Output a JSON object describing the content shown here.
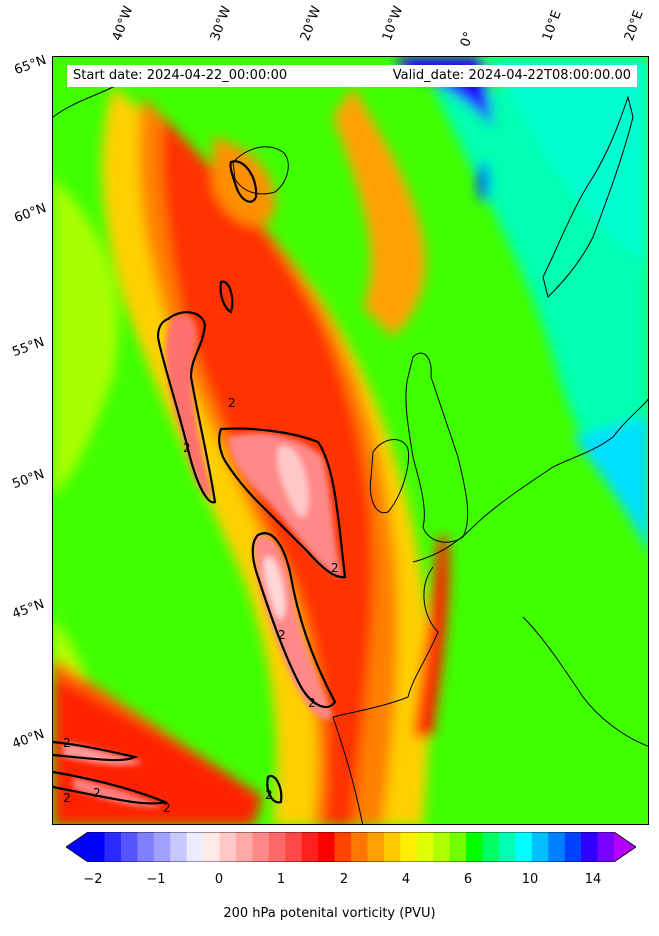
{
  "map": {
    "start_label": "Start date: 2024-04-22_00:00:00",
    "valid_label": "Valid_date: 2024-04-22T08:00:00.00",
    "lon_labels": [
      "40°W",
      "30°W",
      "20°W",
      "10°W",
      "0°",
      "10°E",
      "20°E"
    ],
    "lat_labels": [
      "65°N",
      "60°N",
      "55°N",
      "50°N",
      "45°N",
      "40°N"
    ],
    "contour_label": "2"
  },
  "colorbar": {
    "label": "200 hPa potenital vorticity (PVU)",
    "ticks": [
      "−2",
      "−1",
      "0",
      "1",
      "2",
      "4",
      "6",
      "10",
      "14"
    ],
    "colors": [
      "#0000ff",
      "#2a2aff",
      "#5555ff",
      "#7f7fff",
      "#a0a0ff",
      "#c8c8ff",
      "#ececff",
      "#ffe8e8",
      "#ffc8c8",
      "#ffa8a8",
      "#ff8888",
      "#ff6868",
      "#ff4848",
      "#ff2020",
      "#ff0000",
      "#ff4400",
      "#ff7700",
      "#ffa000",
      "#ffc800",
      "#ffee00",
      "#e0ff00",
      "#b0ff00",
      "#70ff00",
      "#00ff00",
      "#00ff60",
      "#00ffb0",
      "#00ffff",
      "#00c0ff",
      "#0080ff",
      "#0040ff",
      "#3000ff",
      "#7a00ff"
    ],
    "min_color": "#0000ff",
    "max_color": "#b400ff"
  }
}
